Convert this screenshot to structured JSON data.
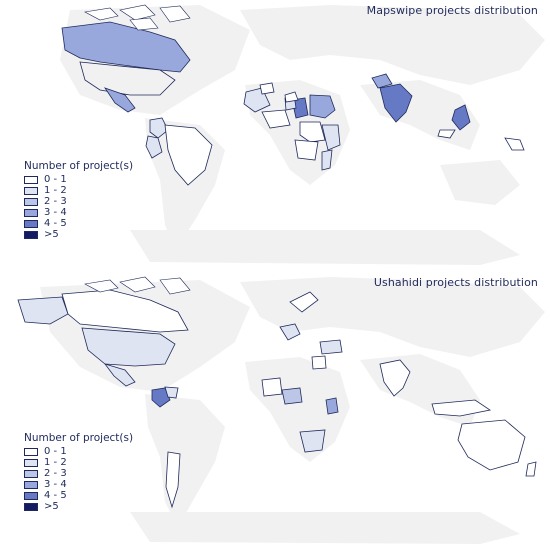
{
  "maps": [
    {
      "title": "Mapswipe projects distribution",
      "legend": {
        "title": "Number of project(s)",
        "items": [
          {
            "label": "0 - 1",
            "color": "#ffffff"
          },
          {
            "label": "1 - 2",
            "color": "#dfe4f3"
          },
          {
            "label": "2 - 3",
            "color": "#bcc7e8"
          },
          {
            "label": "3 - 4",
            "color": "#98a8dc"
          },
          {
            "label": "4 - 5",
            "color": "#6679c4"
          },
          {
            "label": ">5",
            "color": "#141b63"
          }
        ]
      },
      "highlighted_regions": [
        {
          "region": "canada",
          "class": "3 - 4"
        },
        {
          "region": "mexico",
          "class": "3 - 4"
        },
        {
          "region": "colombia",
          "class": "1 - 2"
        },
        {
          "region": "peru",
          "class": "1 - 2"
        },
        {
          "region": "brazil",
          "class": "0 - 1"
        },
        {
          "region": "west-africa",
          "class": "1 - 2"
        },
        {
          "region": "nigeria",
          "class": "4 - 5"
        },
        {
          "region": "sudan",
          "class": "3 - 4"
        },
        {
          "region": "east-africa",
          "class": "1 - 2"
        },
        {
          "region": "india",
          "class": "4 - 5"
        },
        {
          "region": "philippines",
          "class": "4 - 5"
        }
      ]
    },
    {
      "title": "Ushahidi projects distribution",
      "legend": {
        "title": "Number of project(s)",
        "items": [
          {
            "label": "0 - 1",
            "color": "#ffffff"
          },
          {
            "label": "1 - 2",
            "color": "#dfe4f3"
          },
          {
            "label": "2 - 3",
            "color": "#bcc7e8"
          },
          {
            "label": "3 - 4",
            "color": "#98a8dc"
          },
          {
            "label": "4 - 5",
            "color": "#6679c4"
          },
          {
            "label": ">5",
            "color": "#141b63"
          }
        ]
      },
      "highlighted_regions": [
        {
          "region": "alaska",
          "class": "1 - 2"
        },
        {
          "region": "usa",
          "class": "1 - 2"
        },
        {
          "region": "mexico",
          "class": "1 - 2"
        },
        {
          "region": "colombia",
          "class": "4 - 5"
        },
        {
          "region": "venezuela",
          "class": "1 - 2"
        },
        {
          "region": "argentina",
          "class": "0 - 1"
        },
        {
          "region": "europe",
          "class": "1 - 2"
        },
        {
          "region": "nigeria",
          "class": "2 - 3"
        },
        {
          "region": "kenya",
          "class": "3 - 4"
        },
        {
          "region": "south-africa",
          "class": "1 - 2"
        },
        {
          "region": "india",
          "class": "0 - 1"
        },
        {
          "region": "australia",
          "class": "0 - 1"
        }
      ]
    }
  ],
  "colors": {
    "land_background": "#f1f1f2",
    "outline": "#1f2a5a"
  }
}
